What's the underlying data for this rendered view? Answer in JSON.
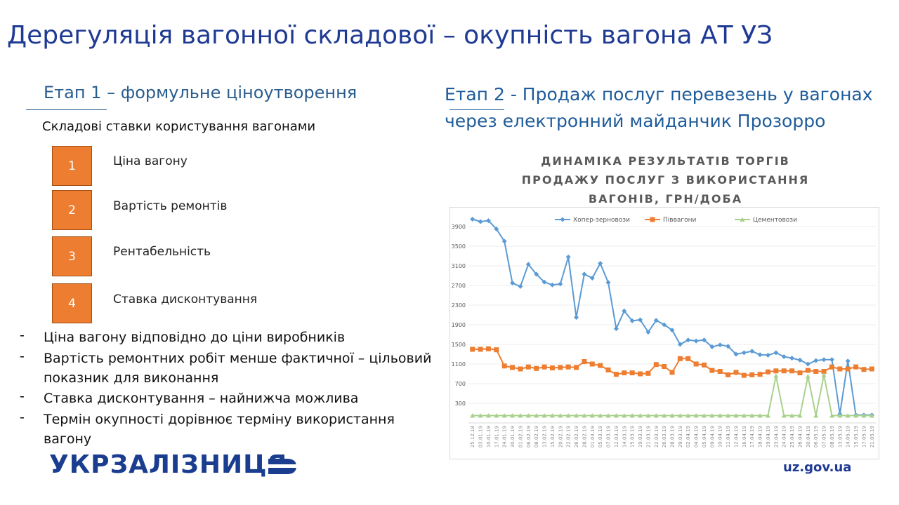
{
  "slide": {
    "title": "Дерегуляція вагонної складової – окупність вагона АТ УЗ",
    "left": {
      "heading": "Етап 1 – формульне ціноутворення",
      "subheading": "Складові ставки користування вагонами",
      "items": [
        {
          "number": "1",
          "label": "Ціна вагону"
        },
        {
          "number": "2",
          "label": "Вартість ремонтів"
        },
        {
          "number": "3",
          "label": "Рентабельність"
        },
        {
          "number": "4",
          "label": "Ставка дисконтування"
        }
      ],
      "bullets": [
        "Ціна вагону відповідно до ціни виробників",
        "Вартість ремонтних робіт менше фактичної – цільовий показник для виконання",
        "Ставка дисконтування – найнижча можлива",
        "Термін окупності дорівнює терміну використання вагону"
      ]
    },
    "right": {
      "heading": "Етап 2 - Продаж послуг перевезень у вагонах через електронний майданчик Прозорро"
    },
    "logo": "УКРЗАЛІЗНИЦЯ",
    "url": "uz.gov.ua"
  },
  "chart_data": {
    "type": "line",
    "title": "ДИНАМІКА РЕЗУЛЬТАТІВ ТОРГІВ ПРОДАЖУ ПОСЛУГ З ВИКОРИСТАННЯ ВАГОНІВ, ГРН/ДОБА",
    "categories": [
      "25.12.18",
      "03.01.19",
      "10.01.19",
      "17.01.19",
      "24.01.19",
      "30.01.19",
      "01.02.19",
      "06.02.19",
      "08.02.19",
      "13.02.19",
      "15.02.19",
      "20.02.19",
      "22.02.19",
      "26.02.19",
      "28.02.19",
      "01.03.19",
      "05.03.19",
      "07.03.19",
      "12.03.19",
      "14.03.19",
      "15.03.19",
      "19.03.19",
      "21.03.19",
      "22.03.19",
      "26.03.19",
      "28.03.19",
      "29.03.19",
      "02.04.19",
      "04.04.19",
      "05.04.19",
      "09.04.19",
      "10.04.19",
      "11.04.19",
      "12.04.19",
      "16.04.19",
      "17.04.19",
      "18.04.19",
      "19.04.19",
      "23.04.19",
      "24.04.19",
      "25.04.19",
      "26.04.19",
      "30.04.19",
      "06.05.19",
      "07.05.19",
      "08.05.19",
      "13.05.19",
      "14.05.19",
      "15.05.19",
      "17.05.19",
      "21.05.19"
    ],
    "series": [
      {
        "name": "Хопер-зерновози",
        "color": "#5b9bd5",
        "marker": "diamond",
        "values": [
          4050,
          4000,
          4020,
          3850,
          3600,
          2750,
          2680,
          3130,
          2930,
          2770,
          2710,
          2730,
          3280,
          2050,
          2930,
          2850,
          3150,
          2760,
          1820,
          2180,
          1980,
          2000,
          1750,
          1990,
          1900,
          1790,
          1500,
          1590,
          1570,
          1590,
          1450,
          1490,
          1460,
          1300,
          1330,
          1360,
          1290,
          1280,
          1330,
          1250,
          1220,
          1180,
          1100,
          1170,
          1190,
          1190,
          80,
          1160,
          60,
          60,
          60
        ]
      },
      {
        "name": "Піввагони",
        "color": "#ed7d31",
        "marker": "square",
        "values": [
          1400,
          1400,
          1410,
          1390,
          1060,
          1030,
          1000,
          1040,
          1010,
          1040,
          1020,
          1030,
          1040,
          1030,
          1150,
          1100,
          1070,
          980,
          890,
          920,
          920,
          900,
          910,
          1090,
          1050,
          930,
          1210,
          1210,
          1100,
          1080,
          970,
          950,
          880,
          930,
          870,
          880,
          890,
          940,
          960,
          960,
          960,
          920,
          970,
          950,
          950,
          1040,
          1000,
          1000,
          1040,
          990,
          1000
        ]
      },
      {
        "name": "Цементовози",
        "color": "#a9d18e",
        "marker": "triangle",
        "values": [
          50,
          50,
          50,
          50,
          50,
          50,
          50,
          50,
          50,
          50,
          50,
          50,
          50,
          50,
          50,
          50,
          50,
          50,
          50,
          50,
          50,
          50,
          50,
          50,
          50,
          50,
          50,
          50,
          50,
          50,
          50,
          50,
          50,
          50,
          50,
          50,
          50,
          50,
          860,
          50,
          50,
          50,
          850,
          50,
          880,
          50,
          50,
          50,
          50,
          50,
          50
        ]
      }
    ],
    "ylim": [
      -100,
      4200
    ],
    "yticks": [
      300,
      700,
      1100,
      1500,
      1900,
      2300,
      2700,
      3100,
      3500,
      3900
    ],
    "grid": true,
    "legend": "top"
  }
}
